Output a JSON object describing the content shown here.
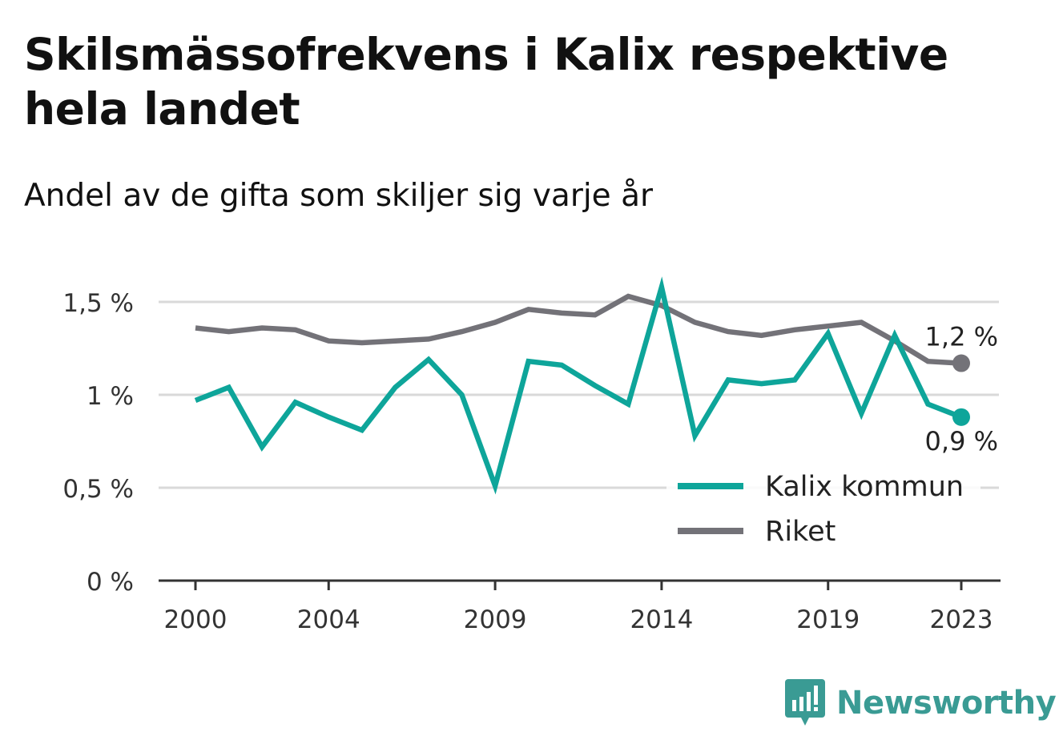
{
  "title": "Skilsmässofrekvens i Kalix respektive hela landet",
  "subtitle": "Andel av de gifta som skiljer sig varje år",
  "brand": {
    "name": "Newsworthy",
    "icon": "newsworthy-logo-icon"
  },
  "colors": {
    "kalix": "#0ea59a",
    "riket": "#737278",
    "grid": "#d9d9d9",
    "axis": "#333333",
    "brand": "#3a9b94"
  },
  "chart_data": {
    "type": "line",
    "x": [
      2000,
      2001,
      2002,
      2003,
      2004,
      2005,
      2006,
      2007,
      2008,
      2009,
      2010,
      2011,
      2012,
      2013,
      2014,
      2015,
      2016,
      2017,
      2018,
      2019,
      2020,
      2021,
      2022,
      2023
    ],
    "x_ticks": [
      2000,
      2004,
      2009,
      2014,
      2019,
      2023
    ],
    "y_ticks": [
      {
        "value": 0,
        "label": "0 %"
      },
      {
        "value": 0.5,
        "label": "0,5 %"
      },
      {
        "value": 1,
        "label": "1 %"
      },
      {
        "value": 1.5,
        "label": "1,5 %"
      }
    ],
    "ylim": [
      0,
      1.6
    ],
    "series": [
      {
        "name": "Kalix kommun",
        "key": "kalix",
        "values": [
          0.97,
          1.04,
          0.72,
          0.96,
          0.88,
          0.81,
          1.04,
          1.19,
          1.0,
          0.51,
          1.18,
          1.16,
          1.05,
          0.95,
          1.58,
          0.78,
          1.08,
          1.06,
          1.08,
          1.33,
          0.9,
          1.32,
          0.95,
          0.88
        ],
        "end_label": "0,9 %"
      },
      {
        "name": "Riket",
        "key": "riket",
        "values": [
          1.36,
          1.34,
          1.36,
          1.35,
          1.29,
          1.28,
          1.29,
          1.3,
          1.34,
          1.39,
          1.46,
          1.44,
          1.43,
          1.53,
          1.48,
          1.39,
          1.34,
          1.32,
          1.35,
          1.37,
          1.39,
          1.29,
          1.18,
          1.17
        ],
        "end_label": "1,2 %"
      }
    ],
    "legend": {
      "position": "bottom-right",
      "entries": [
        "Kalix kommun",
        "Riket"
      ]
    },
    "grid": true,
    "xlabel": "",
    "ylabel": ""
  }
}
